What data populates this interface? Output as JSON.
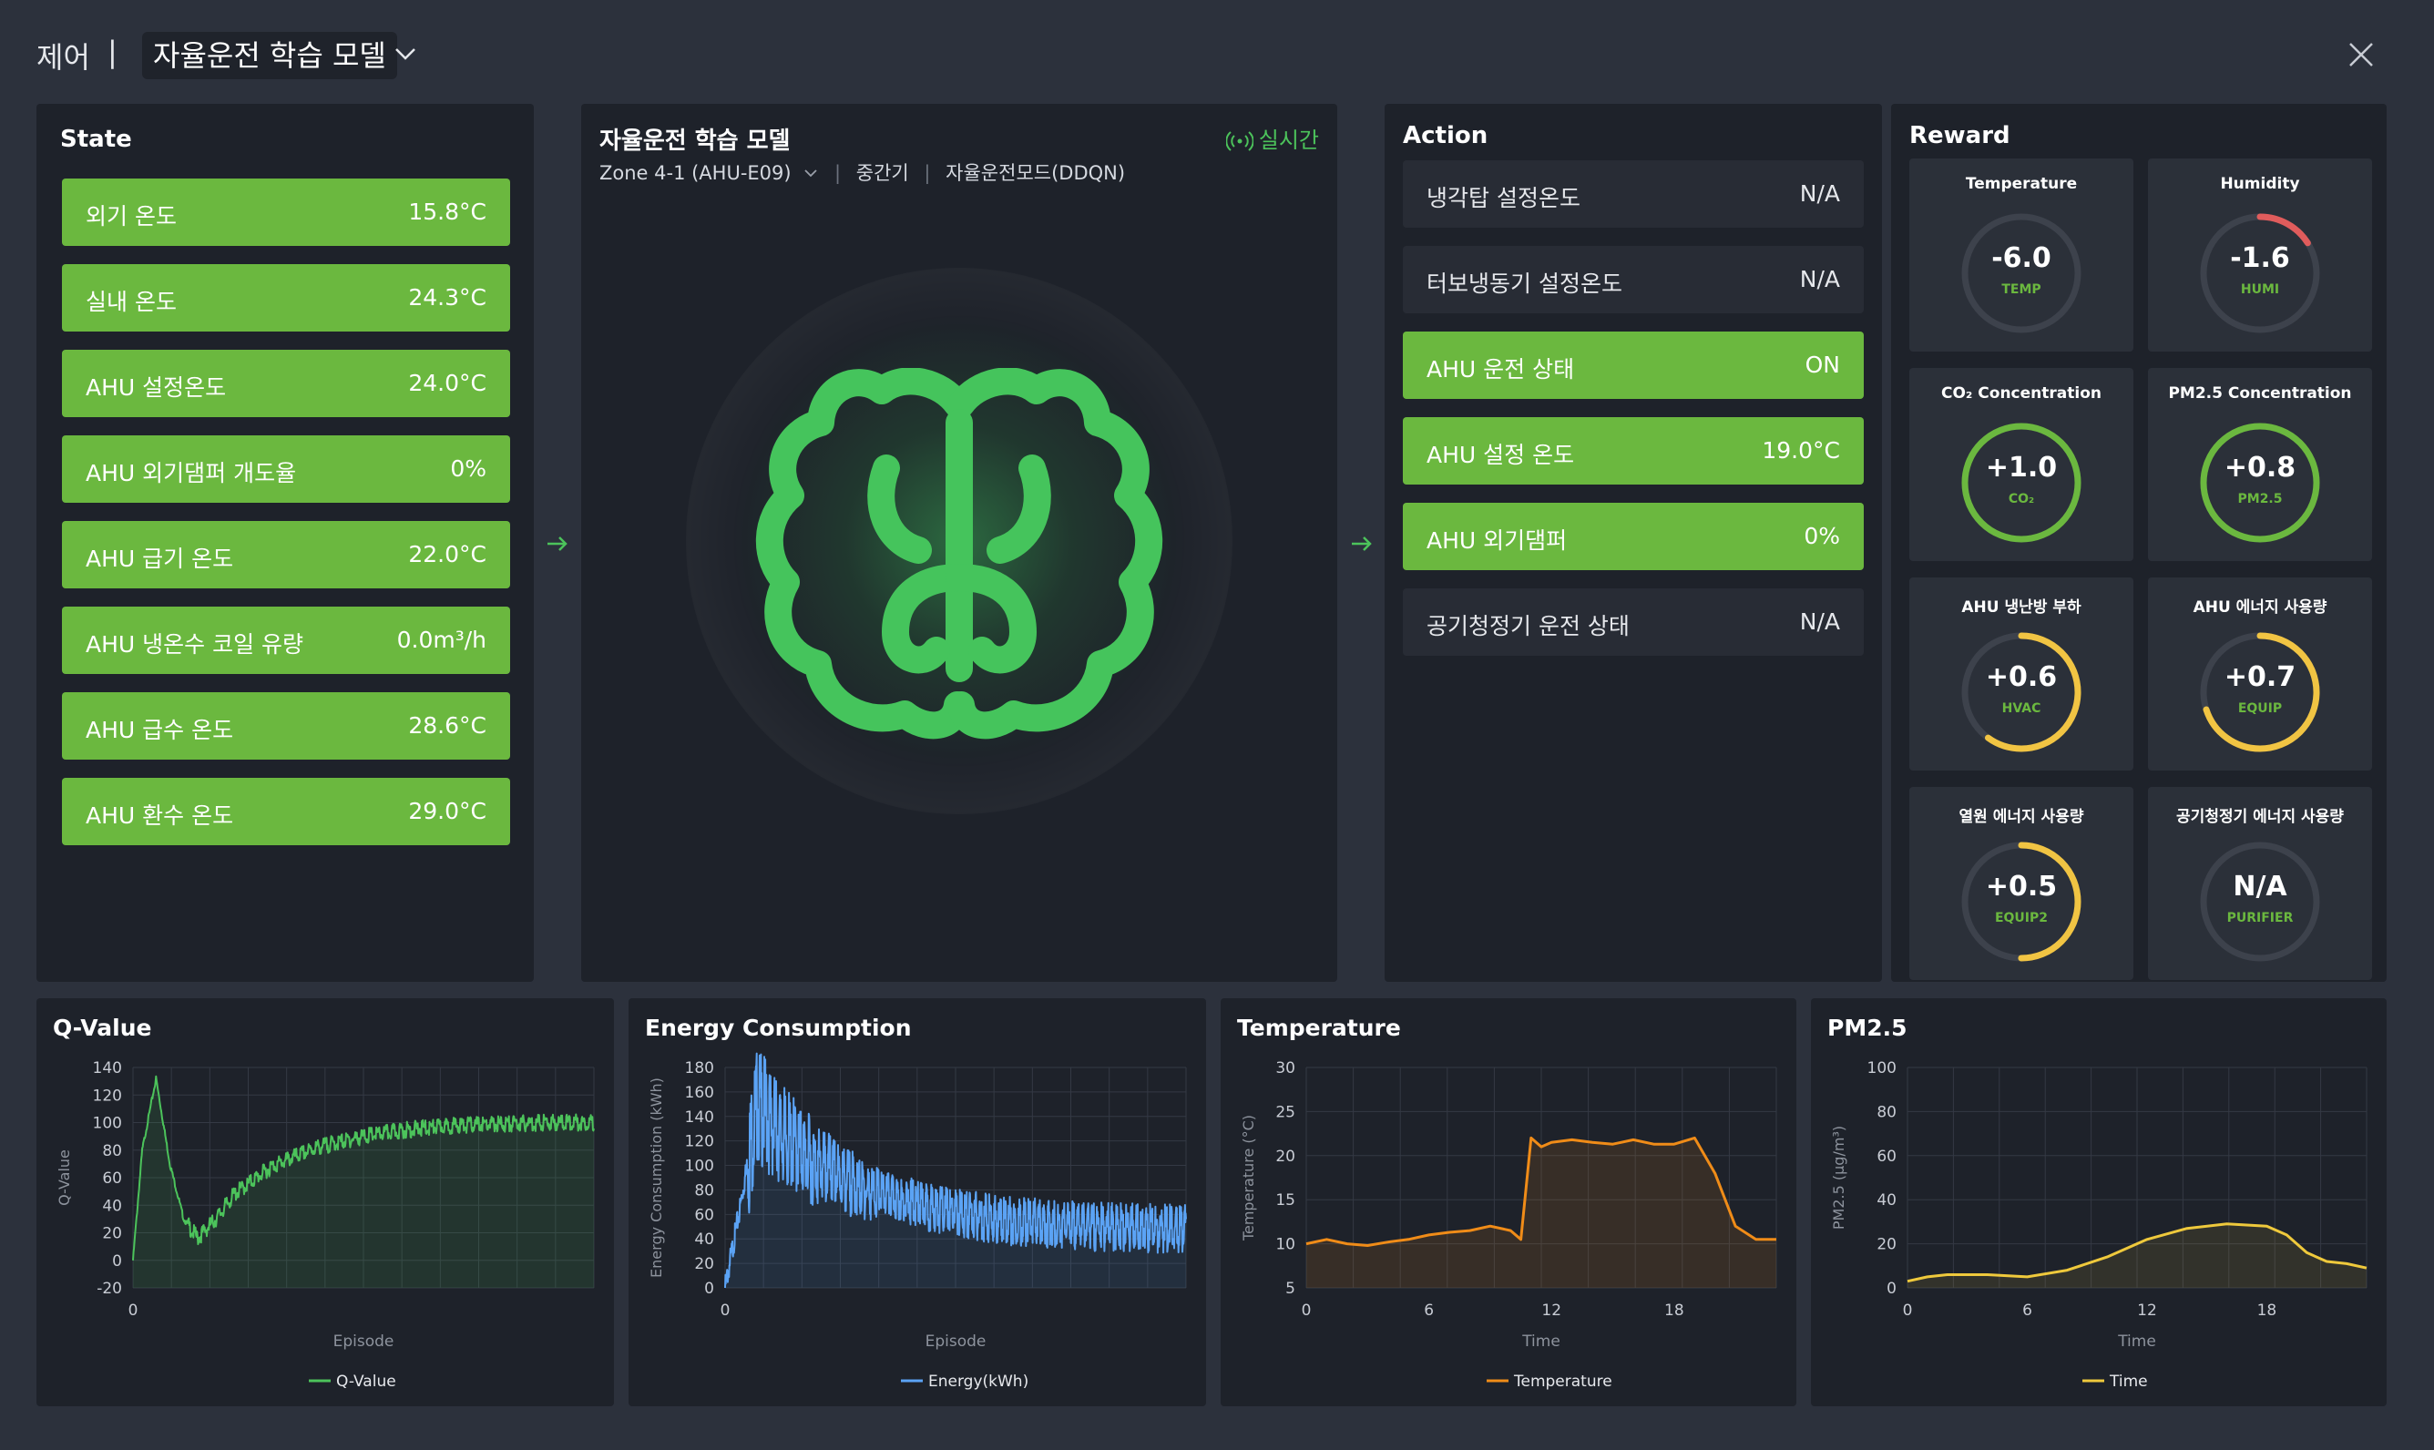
{
  "header": {
    "section": "제어",
    "separator": "|",
    "model_name": "자율운전 학습 모델",
    "chevron_icon": "chevron-down-icon",
    "close_icon": "close-icon"
  },
  "state": {
    "title": "State",
    "items": [
      {
        "label": "외기 온도",
        "value": "15.8°C"
      },
      {
        "label": "실내 온도",
        "value": "24.3°C"
      },
      {
        "label": "AHU 설정온도",
        "value": "24.0°C"
      },
      {
        "label": "AHU 외기댐퍼 개도율",
        "value": "0%"
      },
      {
        "label": "AHU 급기 온도",
        "value": "22.0°C"
      },
      {
        "label": "AHU 냉온수 코일 유량",
        "value": "0.0m³/h"
      },
      {
        "label": "AHU 급수 온도",
        "value": "28.6°C"
      },
      {
        "label": "AHU 환수 온도",
        "value": "29.0°C"
      }
    ]
  },
  "model": {
    "title": "자율운전 학습 모델",
    "zone": "Zone 4-1 (AHU-E09)",
    "period": "중간기",
    "mode": "자율운전모드(DDQN)",
    "live_label": "실시간",
    "live_icon": "broadcast-icon",
    "brain_icon": "brain-icon",
    "accent": "#4cc35b"
  },
  "action": {
    "title": "Action",
    "items": [
      {
        "label": "냉각탑 설정온도",
        "value": "N/A",
        "active": false
      },
      {
        "label": "터보냉동기 설정온도",
        "value": "N/A",
        "active": false
      },
      {
        "label": "AHU 운전 상태",
        "value": "ON",
        "active": true
      },
      {
        "label": "AHU 설정 온도",
        "value": "19.0°C",
        "active": true
      },
      {
        "label": "AHU 외기댐퍼",
        "value": "0%",
        "active": true
      },
      {
        "label": "공기청정기 운전 상태",
        "value": "N/A",
        "active": false
      }
    ]
  },
  "reward": {
    "title": "Reward",
    "items": [
      {
        "title": "Temperature",
        "value": "-6.0",
        "tag": "TEMP",
        "level": 0,
        "color": "#3d424c"
      },
      {
        "title": "Humidity",
        "value": "-1.6",
        "tag": "HUMI",
        "level": 0.16,
        "color": "#e05c5c"
      },
      {
        "title": "CO₂ Concentration",
        "value": "+1.0",
        "tag": "CO₂",
        "level": 1.0,
        "color": "#6bb83f"
      },
      {
        "title": "PM2.5 Concentration",
        "value": "+0.8",
        "tag": "PM2.5",
        "level": 1.0,
        "color": "#6bb83f"
      },
      {
        "title": "AHU 냉난방 부하",
        "value": "+0.6",
        "tag": "HVAC",
        "level": 0.6,
        "color": "#f1c443"
      },
      {
        "title": "AHU 에너지 사용량",
        "value": "+0.7",
        "tag": "EQUIP",
        "level": 0.7,
        "color": "#f1c443"
      },
      {
        "title": "열원 에너지 사용량",
        "value": "+0.5",
        "tag": "EQUIP2",
        "level": 0.5,
        "color": "#f1c443"
      },
      {
        "title": "공기청정기 에너지 사용량",
        "value": "N/A",
        "tag": "PURIFIER",
        "level": 0,
        "color": "#3d424c"
      }
    ]
  },
  "chart_data": [
    {
      "type": "line",
      "title": "Q-Value",
      "xlabel": "Episode",
      "ylabel": "Q-Value",
      "ylim": [
        -20,
        140
      ],
      "yticks": [
        140,
        120,
        100,
        80,
        60,
        40,
        20,
        0,
        -20
      ],
      "xticks": [
        "0"
      ],
      "grid": true,
      "legend": "bottom",
      "series": [
        {
          "name": "Q-Value",
          "color": "#4cc35b",
          "x": [
            0,
            2,
            5,
            8,
            11,
            14,
            18,
            22,
            30,
            40,
            50,
            60,
            70,
            80,
            90,
            100
          ],
          "y": [
            0,
            80,
            132,
            70,
            30,
            16,
            30,
            48,
            68,
            82,
            90,
            95,
            98,
            99,
            100,
            100
          ]
        }
      ]
    },
    {
      "type": "line",
      "title": "Energy Consumption",
      "xlabel": "Episode",
      "ylabel": "Energy Consumption (kWh)",
      "ylim": [
        0,
        180
      ],
      "yticks": [
        180,
        160,
        140,
        120,
        100,
        80,
        60,
        40,
        20,
        0
      ],
      "xticks": [
        "0"
      ],
      "grid": true,
      "legend": "bottom",
      "series": [
        {
          "name": "Energy(kWh)",
          "color": "#5ba3f5",
          "x": [
            0,
            3,
            7,
            12,
            20,
            30,
            45,
            60,
            80,
            100
          ],
          "y": [
            0,
            60,
            150,
            125,
            100,
            80,
            65,
            55,
            50,
            48
          ]
        }
      ]
    },
    {
      "type": "area",
      "title": "Temperature",
      "xlabel": "Time",
      "ylabel": "Temperature (°C)",
      "ylim": [
        5,
        30
      ],
      "yticks": [
        30,
        25,
        20,
        15,
        10,
        5
      ],
      "xticks": [
        "0",
        "6",
        "12",
        "18"
      ],
      "grid": true,
      "legend": "bottom",
      "series": [
        {
          "name": "Temperature",
          "color": "#f08c18",
          "x": [
            0,
            1,
            2,
            3,
            4,
            5,
            6,
            7,
            8,
            9,
            10,
            10.5,
            11,
            11.5,
            12,
            13,
            14,
            15,
            16,
            17,
            18,
            19,
            20,
            21,
            22,
            23
          ],
          "y": [
            10,
            10.5,
            10,
            9.8,
            10.2,
            10.5,
            11,
            11.3,
            11.5,
            12,
            11.5,
            10.5,
            22,
            21,
            21.5,
            21.8,
            21.5,
            21.3,
            21.8,
            21.3,
            21.3,
            22,
            18,
            12,
            10.5,
            10.5
          ]
        }
      ]
    },
    {
      "type": "area",
      "title": "PM2.5",
      "xlabel": "Time",
      "ylabel": "PM2.5 (μg/m³)",
      "ylim": [
        0,
        100
      ],
      "yticks": [
        100,
        80,
        60,
        40,
        20,
        0
      ],
      "xticks": [
        "0",
        "6",
        "12",
        "18"
      ],
      "grid": true,
      "legend": "bottom",
      "series": [
        {
          "name": "Time",
          "color": "#efc93c",
          "x": [
            0,
            1,
            2,
            4,
            6,
            8,
            10,
            12,
            14,
            16,
            18,
            19,
            20,
            21,
            22,
            23
          ],
          "y": [
            3,
            5,
            6,
            6,
            5,
            8,
            14,
            22,
            27,
            29,
            28,
            24,
            16,
            12,
            11,
            9
          ]
        }
      ]
    }
  ]
}
